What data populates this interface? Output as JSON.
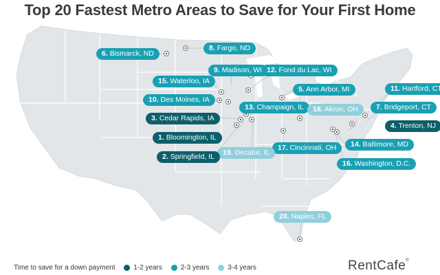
{
  "title": "Top 20 Fastest Metro Areas to Save for Your First Home",
  "brand": "RentCafe",
  "brand_mark": "®",
  "colors": {
    "dark": "#0d5f6b",
    "mid": "#1aa0b3",
    "light": "#8fd0dc",
    "land": "#e2e6e8",
    "border": "#ffffff"
  },
  "legend": {
    "title": "Time to save for a down payment",
    "items": [
      {
        "label": "1-2 years",
        "color": "#0d5f6b"
      },
      {
        "label": "2-3 years",
        "color": "#1aa0b3"
      },
      {
        "label": "3-4 years",
        "color": "#8fd0dc"
      }
    ]
  },
  "cities": [
    {
      "rank": "1.",
      "name": "Bloomington, IL",
      "tier": "dark"
    },
    {
      "rank": "2.",
      "name": "Springfield, IL",
      "tier": "dark"
    },
    {
      "rank": "3.",
      "name": "Cedar Rapids, IA",
      "tier": "dark"
    },
    {
      "rank": "4.",
      "name": "Trenton, NJ",
      "tier": "dark"
    },
    {
      "rank": "5.",
      "name": "Ann Arbor, MI",
      "tier": "mid"
    },
    {
      "rank": "6.",
      "name": "Bismarck, ND",
      "tier": "mid"
    },
    {
      "rank": "7.",
      "name": "Bridgeport, CT",
      "tier": "mid"
    },
    {
      "rank": "8.",
      "name": "Fargo, ND",
      "tier": "mid"
    },
    {
      "rank": "9.",
      "name": "Madison, WI",
      "tier": "mid"
    },
    {
      "rank": "10.",
      "name": "Des Moines, IA",
      "tier": "mid"
    },
    {
      "rank": "11.",
      "name": "Hartford, CT",
      "tier": "mid"
    },
    {
      "rank": "12.",
      "name": "Fond du Lac, WI",
      "tier": "mid"
    },
    {
      "rank": "13.",
      "name": "Champaign, IL",
      "tier": "mid"
    },
    {
      "rank": "14.",
      "name": "Baltimore, MD",
      "tier": "mid"
    },
    {
      "rank": "15.",
      "name": "Waterloo, IA",
      "tier": "mid"
    },
    {
      "rank": "16.",
      "name": "Washington, D.C.",
      "tier": "mid"
    },
    {
      "rank": "17.",
      "name": "Cincinnati, OH",
      "tier": "mid"
    },
    {
      "rank": "18.",
      "name": "Akron, OH",
      "tier": "light"
    },
    {
      "rank": "19.",
      "name": "Decatur, IL",
      "tier": "light"
    },
    {
      "rank": "20.",
      "name": "Naples, FL",
      "tier": "light"
    }
  ]
}
